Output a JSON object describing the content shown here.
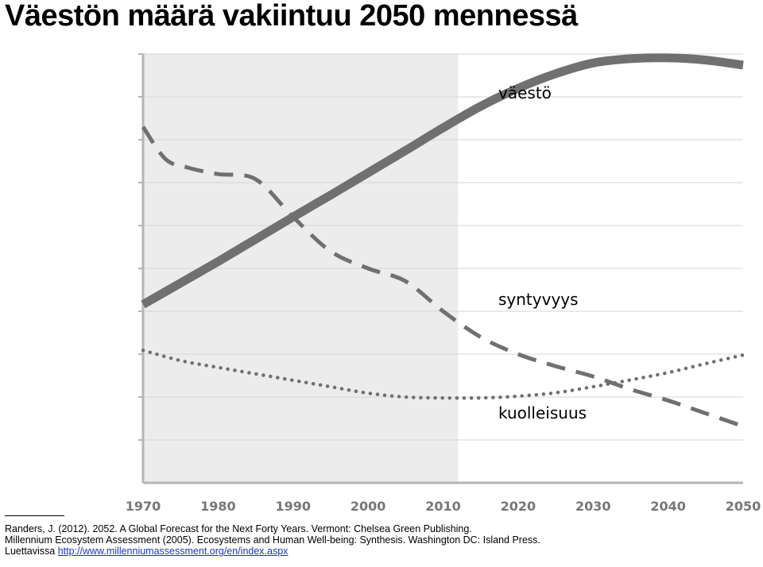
{
  "title": "Väestön määrä vakiintuu 2050 mennessä",
  "chart_data": {
    "type": "line",
    "title": "Väestön määrä vakiintuu 2050 mennessä",
    "xlabel": "",
    "ylabel": "",
    "x_ticks": [
      "1970",
      "1980",
      "1990",
      "2000",
      "2010",
      "2020",
      "2030",
      "2040",
      "2050"
    ],
    "xlim": [
      1970,
      2050
    ],
    "ylim": [
      0,
      10
    ],
    "y_axis_labels_shown": false,
    "grid": "horizontal",
    "shaded_region": {
      "from": 1970,
      "to": 2012,
      "note": "historical period (light grey background)"
    },
    "series": [
      {
        "name": "väestö",
        "style": "solid",
        "color": "#707070",
        "points": [
          [
            1970,
            4.16
          ],
          [
            1975,
            4.66
          ],
          [
            1980,
            5.16
          ],
          [
            1985,
            5.68
          ],
          [
            1990,
            6.2
          ],
          [
            1995,
            6.71
          ],
          [
            2000,
            7.23
          ],
          [
            2005,
            7.75
          ],
          [
            2010,
            8.28
          ],
          [
            2015,
            8.78
          ],
          [
            2020,
            9.2
          ],
          [
            2025,
            9.54
          ],
          [
            2030,
            9.79
          ],
          [
            2035,
            9.89
          ],
          [
            2040,
            9.91
          ],
          [
            2045,
            9.86
          ],
          [
            2050,
            9.74
          ]
        ]
      },
      {
        "name": "syntyvyys",
        "style": "dashed",
        "color": "#707070",
        "points": [
          [
            1970,
            8.3
          ],
          [
            1973,
            7.55
          ],
          [
            1976,
            7.35
          ],
          [
            1980,
            7.2
          ],
          [
            1985,
            7.08
          ],
          [
            1990,
            6.2
          ],
          [
            1995,
            5.4
          ],
          [
            2000,
            5.0
          ],
          [
            2005,
            4.7
          ],
          [
            2010,
            4.0
          ],
          [
            2015,
            3.4
          ],
          [
            2020,
            3.0
          ],
          [
            2025,
            2.72
          ],
          [
            2030,
            2.48
          ],
          [
            2035,
            2.18
          ],
          [
            2040,
            1.92
          ],
          [
            2045,
            1.62
          ],
          [
            2050,
            1.32
          ]
        ]
      },
      {
        "name": "kuolleisuus",
        "style": "dotted",
        "color": "#707070",
        "points": [
          [
            1970,
            3.09
          ],
          [
            1975,
            2.85
          ],
          [
            1980,
            2.69
          ],
          [
            1985,
            2.54
          ],
          [
            1990,
            2.39
          ],
          [
            1995,
            2.24
          ],
          [
            2000,
            2.09
          ],
          [
            2005,
            2.0
          ],
          [
            2010,
            1.98
          ],
          [
            2015,
            1.98
          ],
          [
            2020,
            2.02
          ],
          [
            2025,
            2.1
          ],
          [
            2030,
            2.24
          ],
          [
            2035,
            2.4
          ],
          [
            2040,
            2.57
          ],
          [
            2045,
            2.78
          ],
          [
            2050,
            2.98
          ]
        ]
      }
    ],
    "annotations": [
      "väestö",
      "syntyvyys",
      "kuolleisuus"
    ]
  },
  "references": {
    "line1": "Randers, J. (2012). 2052. A Global Forecast for the Next Forty Years. Vermont: Chelsea Green Publishing.",
    "line2": "Millennium Ecosystem Assessment (2005). Ecosystems and Human Well-being: Synthesis. Washington DC: Island Press.",
    "line3_prefix": "Luettavissa ",
    "line3_link": "http://www.millenniumassessment.org/en/index.aspx"
  }
}
